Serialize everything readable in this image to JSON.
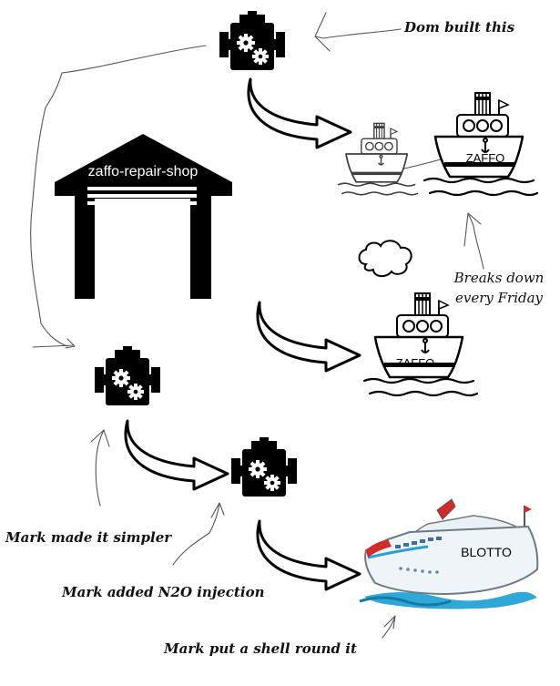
{
  "garage": {
    "label": "zaffo-repair-shop"
  },
  "captions": {
    "dom": "Dom built this",
    "breaks_line1": "Breaks down",
    "breaks_line2": "every Friday",
    "mark_simpler": "Mark made it simpler",
    "mark_n2o": "Mark added N2O injection",
    "mark_shell": "Mark put a shell round it"
  },
  "ships": {
    "zaffo_top": "ZAFFO",
    "zaffo_mid": "ZAFFO",
    "blotto": "BLOTTO"
  },
  "icons": [
    "engine-icon",
    "garage-icon",
    "arrow-icon",
    "ship-icon",
    "cloud-icon",
    "cruise-ship-icon"
  ]
}
